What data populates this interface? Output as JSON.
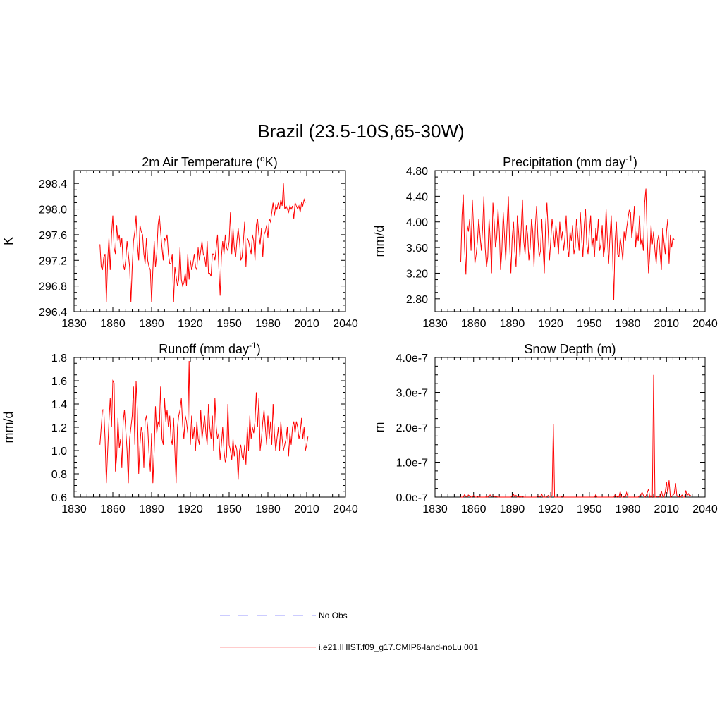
{
  "figure": {
    "title": "Brazil (23.5-10S,65-30W)"
  },
  "legend": {
    "entries": [
      {
        "label": "No Obs",
        "color": "#9999ff",
        "style": "dashed"
      },
      {
        "label": "i.e21.IHIST.f09_g17.CMIP6-land-noLu.001",
        "color": "#ff9999",
        "style": "solid"
      }
    ]
  },
  "chart_data": [
    {
      "type": "line",
      "title_prefix": "2m Air Temperature (",
      "title_super": "o",
      "title_suffix": "K)",
      "ylabel": "K",
      "xlim": [
        1830,
        2040
      ],
      "ylim": [
        296.4,
        298.6
      ],
      "xticks": [
        "1830",
        "1860",
        "1890",
        "1920",
        "1950",
        "1980",
        "2010",
        "2040"
      ],
      "yticks": [
        "296.4",
        "296.8",
        "297.2",
        "297.6",
        "298.0",
        "298.4"
      ],
      "series": [
        {
          "color": "#ff0000",
          "x_start": 1850,
          "x_step": 1,
          "values": [
            297.45,
            297.1,
            297.05,
            297.25,
            297.3,
            296.55,
            297.2,
            297.55,
            297.05,
            297.6,
            297.9,
            297.4,
            297.3,
            297.75,
            297.5,
            297.6,
            297.4,
            297.55,
            297.15,
            297.05,
            297.2,
            297.5,
            297.3,
            297.1,
            296.55,
            297.1,
            297.5,
            297.65,
            297.9,
            297.45,
            297.2,
            297.75,
            297.65,
            297.6,
            297.3,
            297.15,
            297.55,
            297.2,
            297.1,
            297.05,
            296.55,
            297.05,
            297.5,
            297.1,
            297.3,
            297.75,
            297.9,
            297.65,
            297.4,
            297.2,
            297.55,
            297.5,
            297.6,
            297.3,
            297.15,
            297.15,
            297.3,
            296.55,
            297.1,
            296.95,
            296.8,
            296.9,
            297.4,
            296.9,
            296.8,
            296.85,
            297.0,
            296.8,
            297.3,
            296.9,
            297.2,
            297.05,
            297.15,
            297.3,
            297.1,
            297.05,
            297.4,
            297.2,
            297.35,
            297.5,
            297.3,
            297.25,
            297.1,
            297.5,
            297.0,
            297.0,
            296.95,
            297.3,
            297.3,
            297.2,
            297.4,
            297.6,
            297.1,
            296.65,
            297.25,
            297.5,
            297.3,
            297.6,
            297.4,
            297.35,
            297.5,
            297.95,
            297.3,
            297.7,
            297.4,
            297.25,
            297.5,
            297.7,
            297.5,
            297.2,
            297.25,
            297.5,
            297.8,
            297.1,
            297.55,
            297.5,
            297.4,
            297.3,
            297.6,
            297.5,
            297.2,
            297.75,
            297.85,
            297.6,
            297.45,
            297.7,
            297.25,
            297.6,
            297.65,
            297.75,
            297.55,
            297.85,
            297.8,
            297.95,
            298.1,
            297.9,
            298.05,
            298.0,
            298.1,
            298.0,
            298.15,
            298.05,
            298.4,
            298.0,
            298.05,
            298.0,
            297.95,
            298.05,
            298.0,
            298.05,
            297.85,
            298.1,
            298.05,
            298.0,
            298.05,
            297.95,
            298.1,
            298.05,
            298.15,
            298.1
          ]
        }
      ]
    },
    {
      "type": "line",
      "title_prefix": "Precipitation (mm day",
      "title_super": "-1",
      "title_suffix": ")",
      "ylabel": "mm/d",
      "xlim": [
        1830,
        2040
      ],
      "ylim": [
        2.6,
        4.8
      ],
      "xticks": [
        "1830",
        "1860",
        "1890",
        "1920",
        "1950",
        "1980",
        "2010",
        "2040"
      ],
      "yticks": [
        "2.80",
        "3.20",
        "3.60",
        "4.00",
        "4.40",
        "4.80"
      ],
      "series": [
        {
          "color": "#ff0000",
          "x_start": 1850,
          "x_step": 1,
          "values": [
            3.38,
            4.1,
            4.43,
            3.6,
            3.18,
            3.95,
            3.85,
            4.05,
            3.55,
            4.35,
            3.9,
            3.35,
            3.5,
            3.7,
            4.05,
            3.8,
            3.55,
            3.9,
            4.4,
            3.6,
            3.3,
            3.45,
            4.05,
            3.7,
            3.2,
            4.3,
            4.0,
            3.6,
            3.75,
            4.2,
            3.85,
            3.25,
            3.55,
            4.15,
            3.8,
            3.4,
            3.95,
            4.4,
            3.65,
            3.2,
            3.75,
            4.0,
            3.55,
            3.3,
            4.1,
            3.85,
            3.45,
            3.9,
            4.35,
            3.7,
            3.5,
            3.95,
            3.8,
            3.4,
            3.6,
            4.05,
            3.85,
            3.3,
            3.95,
            4.25,
            3.75,
            3.45,
            3.55,
            4.05,
            3.6,
            3.2,
            3.95,
            4.3,
            3.85,
            3.4,
            3.7,
            4.05,
            3.85,
            3.6,
            3.95,
            3.75,
            3.5,
            4.0,
            3.7,
            3.85,
            3.55,
            3.75,
            4.1,
            3.6,
            3.45,
            3.85,
            3.7,
            3.95,
            3.5,
            3.6,
            4.05,
            3.8,
            3.55,
            4.15,
            3.75,
            3.45,
            3.95,
            4.2,
            3.65,
            3.5,
            3.85,
            4.1,
            3.6,
            3.75,
            3.45,
            3.9,
            3.7,
            4.05,
            3.55,
            3.65,
            3.95,
            3.45,
            3.6,
            4.2,
            3.75,
            3.35,
            3.75,
            4.1,
            3.55,
            2.78,
            3.7,
            4.0,
            3.5,
            3.45,
            3.75,
            3.6,
            3.4,
            3.85,
            3.7,
            3.9,
            4.05,
            4.18,
            4.15,
            3.75,
            3.95,
            4.25,
            3.6,
            3.85,
            3.7,
            4.1,
            3.65,
            3.75,
            3.55,
            4.3,
            4.52,
            3.75,
            3.2,
            3.5,
            3.95,
            3.65,
            3.85,
            3.55,
            3.35,
            3.7,
            3.8,
            3.5,
            3.25,
            3.9,
            3.7,
            3.5,
            3.85,
            4.05,
            3.35,
            3.8,
            3.6,
            3.75,
            3.72
          ]
        }
      ]
    },
    {
      "type": "line",
      "title_prefix": "Runoff (mm day",
      "title_super": "-1",
      "title_suffix": ")",
      "ylabel": "mm/d",
      "xlim": [
        1830,
        2040
      ],
      "ylim": [
        0.6,
        1.8
      ],
      "xticks": [
        "1830",
        "1860",
        "1890",
        "1920",
        "1950",
        "1980",
        "2010",
        "2040"
      ],
      "yticks": [
        "0.6",
        "0.8",
        "1.0",
        "1.2",
        "1.4",
        "1.6",
        "1.8"
      ],
      "series": [
        {
          "color": "#ff0000",
          "x_start": 1850,
          "x_step": 1,
          "values": [
            1.05,
            1.2,
            1.35,
            1.35,
            1.1,
            0.72,
            1.0,
            1.25,
            1.45,
            1.2,
            1.6,
            1.58,
            0.82,
            0.95,
            1.28,
            1.02,
            1.1,
            0.85,
            1.25,
            1.35,
            1.18,
            1.0,
            0.72,
            1.1,
            1.2,
            1.3,
            1.55,
            1.05,
            1.6,
            1.35,
            0.8,
            1.05,
            1.2,
            1.15,
            0.85,
            1.25,
            1.3,
            1.2,
            0.98,
            0.82,
            1.15,
            0.72,
            1.0,
            1.38,
            1.15,
            1.25,
            1.2,
            1.55,
            1.1,
            1.05,
            1.45,
            1.25,
            1.35,
            1.2,
            1.3,
            1.1,
            1.05,
            1.28,
            1.0,
            0.72,
            1.2,
            1.3,
            1.35,
            1.45,
            1.22,
            1.1,
            1.3,
            1.25,
            1.15,
            1.77,
            1.05,
            1.3,
            1.1,
            1.2,
            1.0,
            1.25,
            1.1,
            1.05,
            1.35,
            1.1,
            1.2,
            1.3,
            1.15,
            1.05,
            1.4,
            1.2,
            1.1,
            1.3,
            1.0,
            1.45,
            1.2,
            1.1,
            1.15,
            0.92,
            1.05,
            1.2,
            1.0,
            0.9,
            0.95,
            1.4,
            1.05,
            1.0,
            0.92,
            1.1,
            0.95,
            1.05,
            1.0,
            0.75,
            1.0,
            1.05,
            0.95,
            0.92,
            1.05,
            0.88,
            1.2,
            1.0,
            1.3,
            1.1,
            1.2,
            1.15,
            1.25,
            1.5,
            1.2,
            1.45,
            1.0,
            1.1,
            1.25,
            1.35,
            1.2,
            1.05,
            1.3,
            1.1,
            1.25,
            1.05,
            1.4,
            1.15,
            1.0,
            1.1,
            1.2,
            1.0,
            1.25,
            1.1,
            1.0,
            1.05,
            1.1,
            1.2,
            0.95,
            1.15,
            1.05,
            1.2,
            1.25,
            1.15,
            1.25,
            1.2,
            1.1,
            1.15,
            1.28,
            1.1,
            1.2,
            1.0,
            1.05,
            1.12
          ]
        }
      ]
    },
    {
      "type": "line",
      "title_prefix": "Snow Depth (m)",
      "title_super": "",
      "title_suffix": "",
      "ylabel": "m",
      "xlim": [
        1830,
        2040
      ],
      "ylim": [
        0,
        4e-07
      ],
      "xticks": [
        "1830",
        "1860",
        "1890",
        "1920",
        "1950",
        "1980",
        "2010",
        "2040"
      ],
      "yticks": [
        "0.0e-7",
        "1.0e-7",
        "2.0e-7",
        "3.0e-7",
        "4.0e-7"
      ],
      "series": [
        {
          "color": "#ff0000",
          "x_start": 1850,
          "x_step": 1,
          "values": [
            0,
            0,
            5e-10,
            7e-09,
            2e-09,
            0,
            6e-09,
            3e-09,
            0,
            1e-09,
            5e-09,
            0,
            0,
            2e-09,
            0,
            0,
            0,
            0,
            0,
            0,
            1e-09,
            0,
            5e-09,
            6e-09,
            2e-09,
            4e-09,
            0,
            3e-09,
            1e-09,
            0,
            0,
            0,
            0,
            0,
            0,
            0,
            0,
            0,
            0,
            0,
            3e-09,
            8e-09,
            0,
            5e-09,
            0,
            0,
            2e-09,
            0,
            3e-09,
            0,
            0,
            0,
            0,
            0,
            0,
            0,
            0,
            0,
            0,
            0,
            4e-09,
            0,
            2e-09,
            8e-09,
            0,
            0,
            0,
            1e-09,
            5e-09,
            0,
            0,
            5e-09,
            2.1e-07,
            0,
            0,
            0,
            0,
            0,
            0,
            3e-09,
            0,
            0,
            0,
            0,
            0,
            0,
            0,
            0,
            0,
            0,
            0,
            0,
            0,
            0,
            0,
            0,
            0,
            0,
            0,
            0,
            0,
            0,
            0,
            0,
            0,
            7e-09,
            0,
            0,
            0,
            0,
            0,
            0,
            0,
            0,
            0,
            0,
            0,
            0,
            0,
            0,
            6e-09,
            0,
            2e-09,
            0,
            1.6e-08,
            0,
            0,
            3e-09,
            0,
            1.3e-08,
            0,
            0,
            0,
            0,
            0,
            0,
            0,
            0,
            0,
            4e-09,
            6e-09,
            1.4e-08,
            5e-09,
            0,
            3e-09,
            1.2e-08,
            2.3e-08,
            0,
            5e-09,
            0,
            3.5e-07,
            0,
            0,
            3e-09,
            2e-09,
            0,
            1.8e-08,
            3e-09,
            0,
            1.5e-08,
            4.3e-08,
            1e-08,
            4.8e-08,
            0,
            2e-09,
            5e-09,
            1e-08,
            4e-08,
            5e-09,
            0,
            2e-09,
            0,
            6e-09,
            0,
            0,
            1.9e-08,
            4e-09,
            1e-08,
            3e-09,
            5e-09
          ]
        }
      ]
    }
  ]
}
